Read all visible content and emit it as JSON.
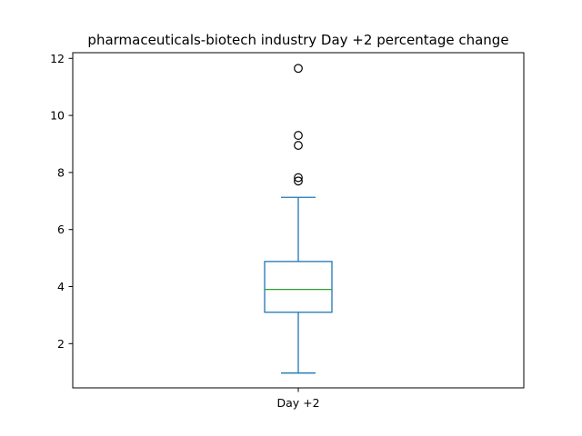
{
  "chart_data": {
    "type": "box",
    "title": "pharmaceuticals-biotech industry Day +2 percentage change",
    "categories": [
      "Day +2"
    ],
    "xlabel": "",
    "ylabel": "",
    "ylim": [
      0.45,
      12.2
    ],
    "yticks": [
      2,
      4,
      6,
      8,
      10,
      12
    ],
    "grid": false,
    "boxes": [
      {
        "category": "Day +2",
        "whisker_low": 0.97,
        "q1": 3.1,
        "median": 3.9,
        "q3": 4.88,
        "whisker_high": 7.13,
        "outliers": [
          7.7,
          7.82,
          8.95,
          9.3,
          11.65
        ]
      }
    ],
    "colors": {
      "box": "#1f77b4",
      "whisker": "#1f77b4",
      "median": "#2ca02c",
      "outlier": "#000000",
      "axes": "#000000"
    }
  }
}
